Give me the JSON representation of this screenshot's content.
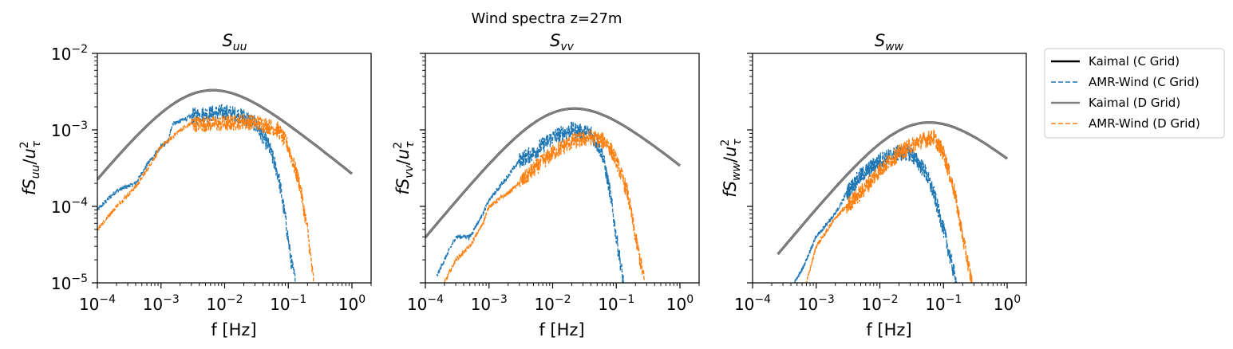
{
  "figure": {
    "suptitle": "Wind spectra z=27m"
  },
  "legend": {
    "placement": "outside-right",
    "entries": [
      {
        "label": "Kaimal (C Grid)",
        "color": "#000000",
        "style": "solid"
      },
      {
        "label": "AMR-Wind (C Grid)",
        "color": "#1f77b4",
        "style": "dashed"
      },
      {
        "label": "Kaimal (D Grid)",
        "color": "#808080",
        "style": "solid"
      },
      {
        "label": "AMR-Wind (D Grid)",
        "color": "#ff7f0e",
        "style": "dashed"
      }
    ]
  },
  "chart_data": [
    {
      "type": "line",
      "component": "uu",
      "title_main": "S",
      "title_sub": "uu",
      "xlabel": "f [Hz]",
      "ylabel_parts": {
        "f": "f",
        "S": "S",
        "sub": "uu",
        "slash": "/",
        "u": "u",
        "sup": "2",
        "tau": "τ"
      },
      "xscale": "log",
      "yscale": "log",
      "xlim": [
        0.0001,
        2
      ],
      "ylim": [
        1e-05,
        0.01
      ],
      "xticks": [
        {
          "value": 0.0001,
          "base": "10",
          "exp": "−4"
        },
        {
          "value": 0.001,
          "base": "10",
          "exp": "−3"
        },
        {
          "value": 0.01,
          "base": "10",
          "exp": "−2"
        },
        {
          "value": 0.1,
          "base": "10",
          "exp": "−1"
        },
        {
          "value": 1,
          "base": "10",
          "exp": "0"
        }
      ],
      "yticks": [
        {
          "value": 1e-05,
          "base": "10",
          "exp": "−5"
        },
        {
          "value": 0.0001,
          "base": "10",
          "exp": "−4"
        },
        {
          "value": 0.001,
          "base": "10",
          "exp": "−3"
        },
        {
          "value": 0.01,
          "base": "10",
          "exp": "−2"
        }
      ],
      "show_ytick_labels": true,
      "kaimal": {
        "peak_f": 0.0065,
        "peak_value": 0.0033,
        "f_range": [
          0.0001,
          1
        ]
      },
      "series": [
        {
          "name": "AMR-Wind (C Grid)",
          "color": "#1f77b4",
          "points": [
            [
              0.0001,
              9e-05
            ],
            [
              0.0002,
              0.00016
            ],
            [
              0.0004,
              0.0002
            ],
            [
              0.0006,
              0.00035
            ],
            [
              0.001,
              0.0006
            ],
            [
              0.0013,
              0.0007
            ],
            [
              0.0015,
              0.0012
            ],
            [
              0.002,
              0.0013
            ],
            [
              0.003,
              0.0015
            ],
            [
              0.005,
              0.0016
            ],
            [
              0.01,
              0.0017
            ],
            [
              0.02,
              0.0015
            ],
            [
              0.03,
              0.0012
            ],
            [
              0.05,
              0.0006
            ],
            [
              0.07,
              0.00025
            ],
            [
              0.09,
              7e-05
            ],
            [
              0.11,
              2e-05
            ],
            [
              0.13,
              1e-05
            ]
          ]
        },
        {
          "name": "AMR-Wind (D Grid)",
          "color": "#ff7f0e",
          "points": [
            [
              0.0001,
              5e-05
            ],
            [
              0.0002,
              0.0001
            ],
            [
              0.0004,
              0.00018
            ],
            [
              0.0006,
              0.0003
            ],
            [
              0.001,
              0.0006
            ],
            [
              0.0015,
              0.0008
            ],
            [
              0.002,
              0.001
            ],
            [
              0.003,
              0.0012
            ],
            [
              0.005,
              0.0012
            ],
            [
              0.01,
              0.0012
            ],
            [
              0.02,
              0.0013
            ],
            [
              0.04,
              0.0012
            ],
            [
              0.07,
              0.001
            ],
            [
              0.1,
              0.0006
            ],
            [
              0.15,
              0.0002
            ],
            [
              0.2,
              5e-05
            ],
            [
              0.25,
              1e-05
            ]
          ]
        }
      ]
    },
    {
      "type": "line",
      "component": "vv",
      "title_main": "S",
      "title_sub": "vv",
      "xlabel": "f [Hz]",
      "ylabel_parts": {
        "f": "f",
        "S": "S",
        "sub": "vv",
        "slash": "/",
        "u": "u",
        "sup": "2",
        "tau": "τ"
      },
      "xscale": "log",
      "yscale": "log",
      "xlim": [
        0.0001,
        2
      ],
      "ylim": [
        1e-05,
        0.01
      ],
      "xticks": [
        {
          "value": 0.0001,
          "base": "10",
          "exp": "−4"
        },
        {
          "value": 0.001,
          "base": "10",
          "exp": "−3"
        },
        {
          "value": 0.01,
          "base": "10",
          "exp": "−2"
        },
        {
          "value": 0.1,
          "base": "10",
          "exp": "−1"
        },
        {
          "value": 1,
          "base": "10",
          "exp": "0"
        }
      ],
      "yticks": [
        {
          "value": 1e-05
        },
        {
          "value": 0.0001
        },
        {
          "value": 0.001
        },
        {
          "value": 0.01
        }
      ],
      "show_ytick_labels": false,
      "kaimal": {
        "peak_f": 0.022,
        "peak_value": 0.0019,
        "f_range": [
          0.0001,
          1
        ]
      },
      "series": [
        {
          "name": "AMR-Wind (C Grid)",
          "color": "#1f77b4",
          "points": [
            [
              0.00015,
              1.2e-05
            ],
            [
              0.0002,
              2e-05
            ],
            [
              0.0003,
              4e-05
            ],
            [
              0.0005,
              4e-05
            ],
            [
              0.0008,
              8e-05
            ],
            [
              0.001,
              0.00012
            ],
            [
              0.002,
              0.00025
            ],
            [
              0.003,
              0.0004
            ],
            [
              0.005,
              0.0005
            ],
            [
              0.01,
              0.0008
            ],
            [
              0.02,
              0.001
            ],
            [
              0.04,
              0.0009
            ],
            [
              0.06,
              0.0005
            ],
            [
              0.08,
              0.00015
            ],
            [
              0.1,
              4e-05
            ],
            [
              0.13,
              1e-05
            ]
          ]
        },
        {
          "name": "AMR-Wind (D Grid)",
          "color": "#ff7f0e",
          "points": [
            [
              0.0002,
              1e-05
            ],
            [
              0.0003,
              2e-05
            ],
            [
              0.0005,
              3e-05
            ],
            [
              0.0008,
              6e-05
            ],
            [
              0.001,
              0.0001
            ],
            [
              0.002,
              0.00015
            ],
            [
              0.003,
              0.0002
            ],
            [
              0.005,
              0.0003
            ],
            [
              0.01,
              0.0005
            ],
            [
              0.02,
              0.0007
            ],
            [
              0.04,
              0.0008
            ],
            [
              0.07,
              0.0007
            ],
            [
              0.1,
              0.0004
            ],
            [
              0.15,
              0.00015
            ],
            [
              0.2,
              4e-05
            ],
            [
              0.28,
              1e-05
            ]
          ]
        }
      ]
    },
    {
      "type": "line",
      "component": "ww",
      "title_main": "S",
      "title_sub": "ww",
      "xlabel": "f [Hz]",
      "ylabel_parts": {
        "f": "f",
        "S": "S",
        "sub": "ww",
        "slash": "/",
        "u": "u",
        "sup": "2",
        "tau": "τ"
      },
      "xscale": "log",
      "yscale": "log",
      "xlim": [
        0.0001,
        2
      ],
      "ylim": [
        1e-05,
        0.01
      ],
      "xticks": [
        {
          "value": 0.0001,
          "base": "10",
          "exp": "−4"
        },
        {
          "value": 0.001,
          "base": "10",
          "exp": "−3"
        },
        {
          "value": 0.01,
          "base": "10",
          "exp": "−2"
        },
        {
          "value": 0.1,
          "base": "10",
          "exp": "−1"
        },
        {
          "value": 1,
          "base": "10",
          "exp": "0"
        }
      ],
      "yticks": [
        {
          "value": 1e-05
        },
        {
          "value": 0.0001
        },
        {
          "value": 0.001
        },
        {
          "value": 0.01
        }
      ],
      "show_ytick_labels": false,
      "kaimal": {
        "peak_f": 0.06,
        "peak_value": 0.00125,
        "f_range": [
          0.00025,
          1
        ]
      },
      "series": [
        {
          "name": "AMR-Wind (C Grid)",
          "color": "#1f77b4",
          "points": [
            [
              0.00045,
              1e-05
            ],
            [
              0.0006,
              1.5e-05
            ],
            [
              0.001,
              4e-05
            ],
            [
              0.002,
              8e-05
            ],
            [
              0.003,
              0.00015
            ],
            [
              0.005,
              0.00025
            ],
            [
              0.01,
              0.0004
            ],
            [
              0.02,
              0.0005
            ],
            [
              0.03,
              0.0005
            ],
            [
              0.05,
              0.0003
            ],
            [
              0.07,
              0.00015
            ],
            [
              0.1,
              5e-05
            ],
            [
              0.13,
              2e-05
            ],
            [
              0.16,
              1e-05
            ]
          ]
        },
        {
          "name": "AMR-Wind (D Grid)",
          "color": "#ff7f0e",
          "points": [
            [
              0.0007,
              1e-05
            ],
            [
              0.001,
              3e-05
            ],
            [
              0.002,
              7e-05
            ],
            [
              0.003,
              0.0001
            ],
            [
              0.005,
              0.00015
            ],
            [
              0.01,
              0.0003
            ],
            [
              0.02,
              0.0005
            ],
            [
              0.04,
              0.0007
            ],
            [
              0.07,
              0.0008
            ],
            [
              0.1,
              0.0005
            ],
            [
              0.15,
              0.00015
            ],
            [
              0.2,
              4e-05
            ],
            [
              0.28,
              1e-05
            ]
          ]
        }
      ]
    }
  ]
}
